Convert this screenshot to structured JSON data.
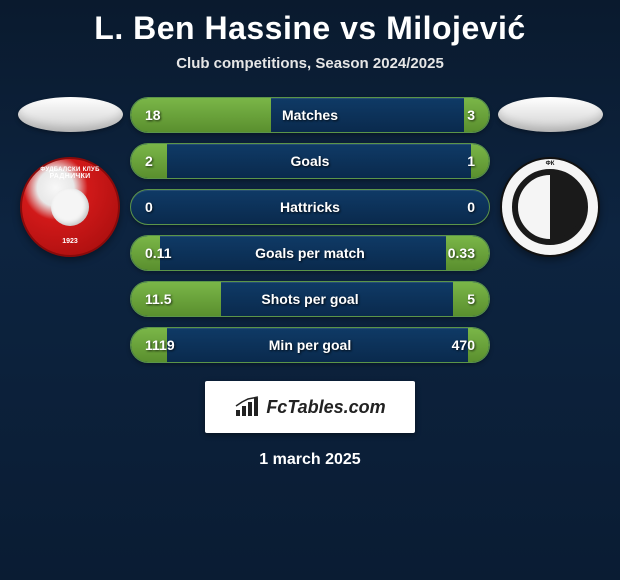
{
  "title": "L. Ben Hassine vs Milojević",
  "subtitle": "Club competitions, Season 2024/2025",
  "date": "1 march 2025",
  "brand": "FcTables.com",
  "colors": {
    "bar_fill": "#6fa83e",
    "bar_bg": "#0d2f52",
    "bar_border": "#5b9549",
    "text": "#ffffff",
    "bg_top": "#0a1a2e",
    "bg_bottom": "#0a1c33"
  },
  "left_club": {
    "name_top": "ФУДБАЛСКИ КЛУБ",
    "name_mid": "РАДНИЧКИ",
    "year": "1923"
  },
  "right_club": {
    "name_top": "ФК",
    "name_ring": "ЧУКАРИЧКИ СТАНКОМ"
  },
  "stats": [
    {
      "label": "Matches",
      "left_val": "18",
      "right_val": "3",
      "left_pct": 39,
      "right_pct": 7
    },
    {
      "label": "Goals",
      "left_val": "2",
      "right_val": "1",
      "left_pct": 10,
      "right_pct": 5
    },
    {
      "label": "Hattricks",
      "left_val": "0",
      "right_val": "0",
      "left_pct": 0,
      "right_pct": 0
    },
    {
      "label": "Goals per match",
      "left_val": "0.11",
      "right_val": "0.33",
      "left_pct": 8,
      "right_pct": 12
    },
    {
      "label": "Shots per goal",
      "left_val": "11.5",
      "right_val": "5",
      "left_pct": 25,
      "right_pct": 10
    },
    {
      "label": "Min per goal",
      "left_val": "1119",
      "right_val": "470",
      "left_pct": 10,
      "right_pct": 6
    }
  ]
}
